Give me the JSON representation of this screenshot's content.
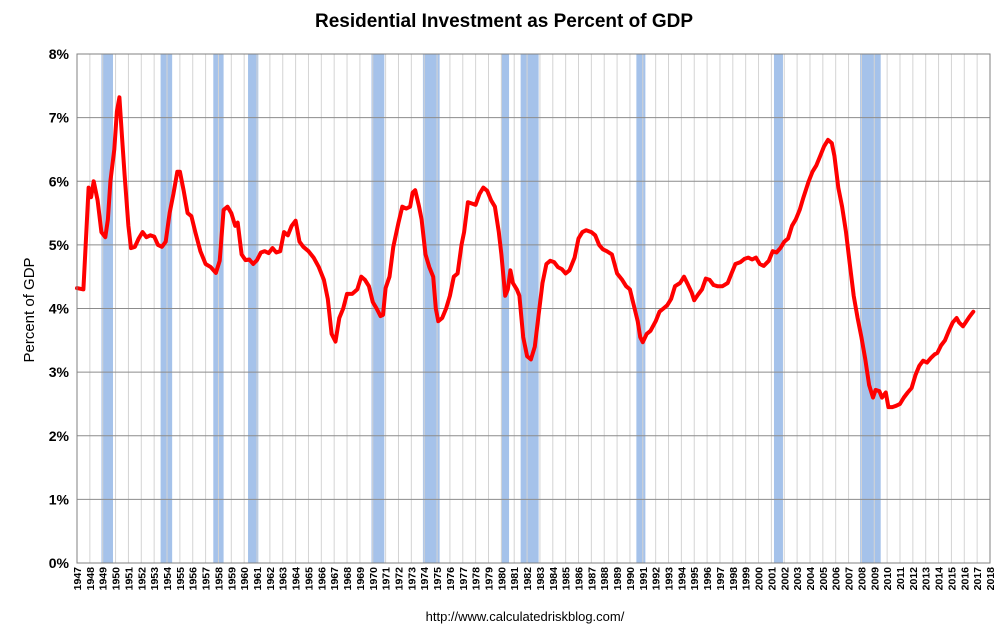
{
  "chart_data": {
    "type": "line",
    "title": "Residential Investment as Percent of GDP",
    "ylabel": "Percent of GDP",
    "xlabel": "",
    "source": "http://www.calculatedriskblog.com/",
    "ylim": [
      0,
      8
    ],
    "y_ticks": [
      "0%",
      "1%",
      "2%",
      "3%",
      "4%",
      "5%",
      "6%",
      "7%",
      "8%"
    ],
    "x_range": [
      1947,
      2018
    ],
    "x_ticks": [
      "1947",
      "1948",
      "1949",
      "1950",
      "1951",
      "1952",
      "1953",
      "1954",
      "1955",
      "1956",
      "1957",
      "1958",
      "1959",
      "1960",
      "1961",
      "1962",
      "1963",
      "1964",
      "1965",
      "1966",
      "1967",
      "1968",
      "1969",
      "1970",
      "1971",
      "1972",
      "1973",
      "1974",
      "1975",
      "1976",
      "1977",
      "1978",
      "1979",
      "1980",
      "1981",
      "1982",
      "1983",
      "1984",
      "1985",
      "1986",
      "1987",
      "1988",
      "1989",
      "1990",
      "1991",
      "1992",
      "1993",
      "1994",
      "1995",
      "1996",
      "1997",
      "1998",
      "1999",
      "2000",
      "2001",
      "2002",
      "2003",
      "2004",
      "2005",
      "2006",
      "2007",
      "2008",
      "2009",
      "2010",
      "2011",
      "2012",
      "2013",
      "2014",
      "2015",
      "2016",
      "2017",
      "2018"
    ],
    "grid": true,
    "recessions": [
      [
        1948.9,
        1949.8
      ],
      [
        1953.5,
        1954.4
      ],
      [
        1957.6,
        1958.4
      ],
      [
        1960.3,
        1961.1
      ],
      [
        1969.9,
        1970.9
      ],
      [
        1973.9,
        1975.2
      ],
      [
        1980.0,
        1980.6
      ],
      [
        1981.5,
        1982.9
      ],
      [
        1990.5,
        1991.2
      ],
      [
        2001.2,
        2001.9
      ],
      [
        2007.9,
        2009.5
      ]
    ],
    "series": [
      {
        "color": "#ff0000",
        "points": [
          [
            1947.0,
            4.32
          ],
          [
            1947.5,
            4.3
          ],
          [
            1947.9,
            5.9
          ],
          [
            1948.1,
            5.75
          ],
          [
            1948.3,
            6.0
          ],
          [
            1948.6,
            5.7
          ],
          [
            1948.9,
            5.2
          ],
          [
            1949.2,
            5.12
          ],
          [
            1949.4,
            5.4
          ],
          [
            1949.6,
            6.0
          ],
          [
            1949.9,
            6.5
          ],
          [
            1950.1,
            7.1
          ],
          [
            1950.3,
            7.32
          ],
          [
            1950.5,
            6.7
          ],
          [
            1950.7,
            6.1
          ],
          [
            1951.0,
            5.3
          ],
          [
            1951.2,
            4.95
          ],
          [
            1951.5,
            4.97
          ],
          [
            1951.8,
            5.1
          ],
          [
            1952.1,
            5.2
          ],
          [
            1952.4,
            5.12
          ],
          [
            1952.7,
            5.15
          ],
          [
            1953.0,
            5.13
          ],
          [
            1953.3,
            5.0
          ],
          [
            1953.6,
            4.97
          ],
          [
            1953.9,
            5.05
          ],
          [
            1954.2,
            5.5
          ],
          [
            1954.5,
            5.8
          ],
          [
            1954.8,
            6.15
          ],
          [
            1955.0,
            6.15
          ],
          [
            1955.3,
            5.85
          ],
          [
            1955.6,
            5.5
          ],
          [
            1955.9,
            5.45
          ],
          [
            1956.2,
            5.2
          ],
          [
            1956.6,
            4.9
          ],
          [
            1957.0,
            4.7
          ],
          [
            1957.4,
            4.65
          ],
          [
            1957.8,
            4.56
          ],
          [
            1958.1,
            4.75
          ],
          [
            1958.4,
            5.55
          ],
          [
            1958.7,
            5.6
          ],
          [
            1959.0,
            5.5
          ],
          [
            1959.3,
            5.3
          ],
          [
            1959.5,
            5.35
          ],
          [
            1959.8,
            4.85
          ],
          [
            1960.1,
            4.76
          ],
          [
            1960.4,
            4.77
          ],
          [
            1960.7,
            4.7
          ],
          [
            1961.0,
            4.76
          ],
          [
            1961.3,
            4.88
          ],
          [
            1961.6,
            4.9
          ],
          [
            1961.9,
            4.87
          ],
          [
            1962.2,
            4.95
          ],
          [
            1962.5,
            4.88
          ],
          [
            1962.8,
            4.9
          ],
          [
            1963.1,
            5.2
          ],
          [
            1963.4,
            5.15
          ],
          [
            1963.7,
            5.3
          ],
          [
            1964.0,
            5.38
          ],
          [
            1964.3,
            5.05
          ],
          [
            1964.6,
            4.97
          ],
          [
            1965.0,
            4.9
          ],
          [
            1965.4,
            4.8
          ],
          [
            1965.8,
            4.65
          ],
          [
            1966.2,
            4.45
          ],
          [
            1966.5,
            4.15
          ],
          [
            1966.8,
            3.6
          ],
          [
            1967.1,
            3.48
          ],
          [
            1967.4,
            3.85
          ],
          [
            1967.7,
            4.0
          ],
          [
            1968.0,
            4.23
          ],
          [
            1968.4,
            4.23
          ],
          [
            1968.8,
            4.3
          ],
          [
            1969.1,
            4.5
          ],
          [
            1969.4,
            4.45
          ],
          [
            1969.7,
            4.35
          ],
          [
            1970.0,
            4.1
          ],
          [
            1970.3,
            4.0
          ],
          [
            1970.6,
            3.88
          ],
          [
            1970.8,
            3.9
          ],
          [
            1971.0,
            4.32
          ],
          [
            1971.3,
            4.5
          ],
          [
            1971.6,
            4.97
          ],
          [
            1972.0,
            5.35
          ],
          [
            1972.3,
            5.6
          ],
          [
            1972.6,
            5.57
          ],
          [
            1972.9,
            5.6
          ],
          [
            1973.1,
            5.82
          ],
          [
            1973.3,
            5.86
          ],
          [
            1973.6,
            5.6
          ],
          [
            1973.8,
            5.4
          ],
          [
            1974.1,
            4.85
          ],
          [
            1974.4,
            4.65
          ],
          [
            1974.7,
            4.5
          ],
          [
            1974.9,
            4.0
          ],
          [
            1975.1,
            3.8
          ],
          [
            1975.4,
            3.85
          ],
          [
            1975.7,
            4.0
          ],
          [
            1976.0,
            4.2
          ],
          [
            1976.3,
            4.5
          ],
          [
            1976.6,
            4.55
          ],
          [
            1976.9,
            5.0
          ],
          [
            1977.1,
            5.2
          ],
          [
            1977.4,
            5.67
          ],
          [
            1977.7,
            5.65
          ],
          [
            1978.0,
            5.63
          ],
          [
            1978.3,
            5.8
          ],
          [
            1978.6,
            5.9
          ],
          [
            1978.9,
            5.85
          ],
          [
            1979.2,
            5.7
          ],
          [
            1979.5,
            5.6
          ],
          [
            1979.8,
            5.2
          ],
          [
            1980.0,
            4.85
          ],
          [
            1980.3,
            4.2
          ],
          [
            1980.5,
            4.3
          ],
          [
            1980.7,
            4.6
          ],
          [
            1980.9,
            4.4
          ],
          [
            1981.2,
            4.3
          ],
          [
            1981.4,
            4.2
          ],
          [
            1981.7,
            3.55
          ],
          [
            1982.0,
            3.25
          ],
          [
            1982.3,
            3.2
          ],
          [
            1982.6,
            3.4
          ],
          [
            1982.9,
            3.9
          ],
          [
            1983.2,
            4.4
          ],
          [
            1983.5,
            4.7
          ],
          [
            1983.8,
            4.75
          ],
          [
            1984.1,
            4.73
          ],
          [
            1984.4,
            4.65
          ],
          [
            1984.7,
            4.62
          ],
          [
            1985.0,
            4.55
          ],
          [
            1985.3,
            4.6
          ],
          [
            1985.7,
            4.8
          ],
          [
            1986.0,
            5.1
          ],
          [
            1986.3,
            5.2
          ],
          [
            1986.6,
            5.23
          ],
          [
            1987.0,
            5.2
          ],
          [
            1987.3,
            5.15
          ],
          [
            1987.6,
            5.0
          ],
          [
            1987.9,
            4.93
          ],
          [
            1988.2,
            4.9
          ],
          [
            1988.6,
            4.85
          ],
          [
            1989.0,
            4.55
          ],
          [
            1989.4,
            4.45
          ],
          [
            1989.7,
            4.35
          ],
          [
            1990.0,
            4.3
          ],
          [
            1990.3,
            4.05
          ],
          [
            1990.6,
            3.8
          ],
          [
            1990.8,
            3.55
          ],
          [
            1991.0,
            3.47
          ],
          [
            1991.3,
            3.6
          ],
          [
            1991.6,
            3.65
          ],
          [
            1992.0,
            3.8
          ],
          [
            1992.3,
            3.95
          ],
          [
            1992.6,
            4.0
          ],
          [
            1992.9,
            4.05
          ],
          [
            1993.2,
            4.15
          ],
          [
            1993.5,
            4.35
          ],
          [
            1993.9,
            4.4
          ],
          [
            1994.2,
            4.5
          ],
          [
            1994.5,
            4.38
          ],
          [
            1994.8,
            4.25
          ],
          [
            1995.0,
            4.13
          ],
          [
            1995.3,
            4.22
          ],
          [
            1995.6,
            4.3
          ],
          [
            1995.9,
            4.47
          ],
          [
            1996.2,
            4.45
          ],
          [
            1996.5,
            4.37
          ],
          [
            1996.8,
            4.35
          ],
          [
            1997.2,
            4.35
          ],
          [
            1997.6,
            4.4
          ],
          [
            1997.9,
            4.55
          ],
          [
            1998.2,
            4.7
          ],
          [
            1998.6,
            4.73
          ],
          [
            1998.9,
            4.78
          ],
          [
            1999.2,
            4.8
          ],
          [
            1999.5,
            4.77
          ],
          [
            1999.8,
            4.8
          ],
          [
            2000.1,
            4.7
          ],
          [
            2000.4,
            4.67
          ],
          [
            2000.8,
            4.75
          ],
          [
            2001.1,
            4.9
          ],
          [
            2001.4,
            4.88
          ],
          [
            2001.7,
            4.95
          ],
          [
            2002.0,
            5.05
          ],
          [
            2002.3,
            5.1
          ],
          [
            2002.6,
            5.3
          ],
          [
            2002.9,
            5.4
          ],
          [
            2003.2,
            5.55
          ],
          [
            2003.5,
            5.75
          ],
          [
            2003.9,
            6.0
          ],
          [
            2004.2,
            6.15
          ],
          [
            2004.5,
            6.25
          ],
          [
            2004.8,
            6.4
          ],
          [
            2005.1,
            6.55
          ],
          [
            2005.4,
            6.65
          ],
          [
            2005.7,
            6.6
          ],
          [
            2005.9,
            6.4
          ],
          [
            2006.2,
            5.9
          ],
          [
            2006.5,
            5.6
          ],
          [
            2006.8,
            5.2
          ],
          [
            2007.1,
            4.7
          ],
          [
            2007.4,
            4.2
          ],
          [
            2007.7,
            3.85
          ],
          [
            2008.0,
            3.55
          ],
          [
            2008.3,
            3.2
          ],
          [
            2008.6,
            2.8
          ],
          [
            2008.9,
            2.6
          ],
          [
            2009.1,
            2.72
          ],
          [
            2009.4,
            2.7
          ],
          [
            2009.6,
            2.6
          ],
          [
            2009.9,
            2.68
          ],
          [
            2010.1,
            2.45
          ],
          [
            2010.4,
            2.45
          ],
          [
            2010.7,
            2.47
          ],
          [
            2011.0,
            2.5
          ],
          [
            2011.3,
            2.6
          ],
          [
            2011.6,
            2.68
          ],
          [
            2011.9,
            2.75
          ],
          [
            2012.2,
            2.95
          ],
          [
            2012.5,
            3.1
          ],
          [
            2012.8,
            3.18
          ],
          [
            2013.1,
            3.15
          ],
          [
            2013.4,
            3.22
          ],
          [
            2013.7,
            3.28
          ],
          [
            2013.9,
            3.3
          ],
          [
            2014.2,
            3.42
          ],
          [
            2014.5,
            3.5
          ],
          [
            2014.8,
            3.65
          ],
          [
            2015.1,
            3.78
          ],
          [
            2015.4,
            3.85
          ],
          [
            2015.6,
            3.78
          ],
          [
            2015.9,
            3.72
          ],
          [
            2016.1,
            3.78
          ],
          [
            2016.4,
            3.87
          ],
          [
            2016.7,
            3.95
          ]
        ]
      }
    ]
  }
}
